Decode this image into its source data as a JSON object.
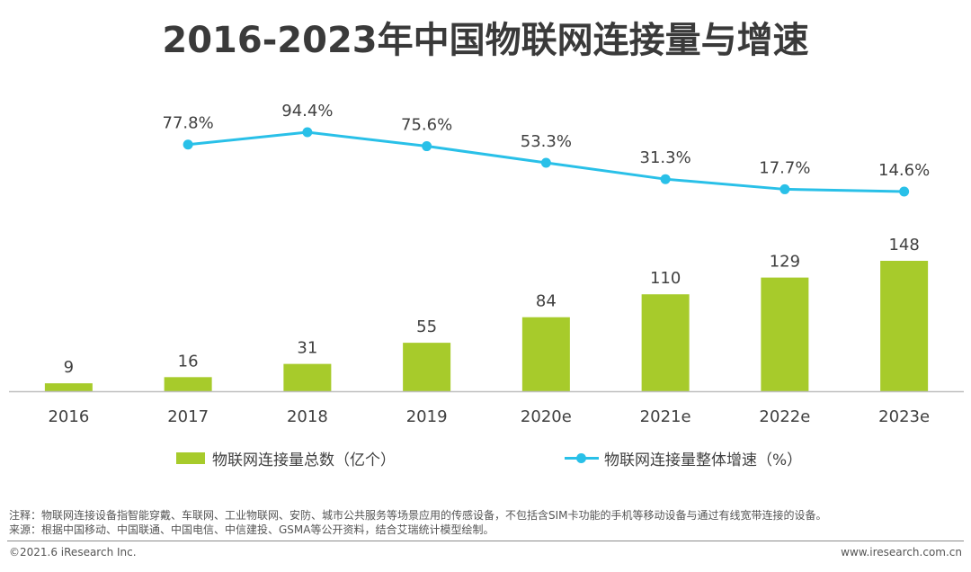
{
  "title": "2016-2023年中国物联网连接量与增速",
  "colors": {
    "bar": "#a7cb2b",
    "line": "#29c0e8",
    "axis": "#bfbfbf",
    "text": "#404040"
  },
  "chart_data": {
    "type": "bar+line",
    "categories": [
      "2016",
      "2017",
      "2018",
      "2019",
      "2020e",
      "2021e",
      "2022e",
      "2023e"
    ],
    "series": [
      {
        "name": "物联网连接量总数（亿个）",
        "type": "bar",
        "values": [
          9,
          16,
          31,
          55,
          84,
          110,
          129,
          148
        ]
      },
      {
        "name": "物联网连接量整体增速（%）",
        "type": "line",
        "values": [
          null,
          77.8,
          94.4,
          75.6,
          53.3,
          31.3,
          17.7,
          14.6
        ]
      }
    ],
    "line_labels": [
      "",
      "77.8%",
      "94.4%",
      "75.6%",
      "53.3%",
      "31.3%",
      "17.7%",
      "14.6%"
    ],
    "legend_position": "bottom",
    "grid": false
  },
  "legend": {
    "bar_label": "物联网连接量总数（亿个）",
    "line_label": "物联网连接量整体增速（%）"
  },
  "notes": {
    "line1": "注释：物联网连接设备指智能穿戴、车联网、工业物联网、安防、城市公共服务等场景应用的传感设备，不包括含SIM卡功能的手机等移动设备与通过有线宽带连接的设备。",
    "line2": "来源：根据中国移动、中国联通、中国电信、中信建投、GSMA等公开资料，结合艾瑞统计模型绘制。"
  },
  "footer": {
    "copyright": "©2021.6 iResearch Inc.",
    "website": "www.iresearch.com.cn"
  }
}
